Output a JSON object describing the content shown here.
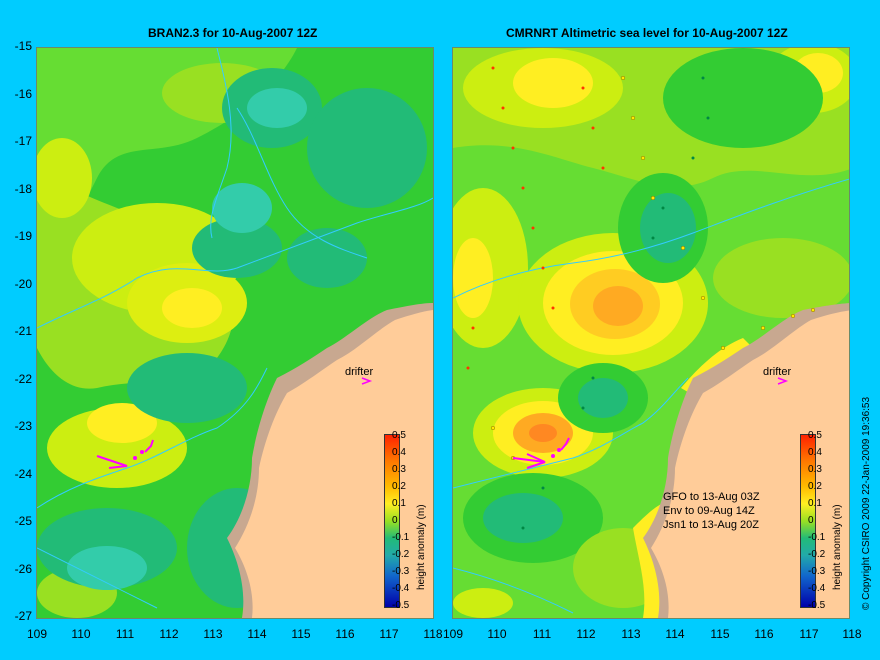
{
  "left_panel": {
    "title": "BRAN2.3 for 10-Aug-2007 12Z",
    "drifter_label": "drifter",
    "colorbar_title": "height anomaly (m)"
  },
  "right_panel": {
    "title": "CMRNRT Altimetric sea level  for 10-Aug-2007 12Z",
    "drifter_label": "drifter",
    "colorbar_title": "height anomaly (m)",
    "legend": [
      "GFO to 13-Aug 03Z",
      "Env to 09-Aug 14Z",
      "Jsn1 to 13-Aug 20Z"
    ]
  },
  "y_ticks": [
    "-15",
    "-16",
    "-17",
    "-18",
    "-19",
    "-20",
    "-21",
    "-22",
    "-23",
    "-24",
    "-25",
    "-26",
    "-27"
  ],
  "x_ticks": [
    "109",
    "110",
    "111",
    "112",
    "113",
    "114",
    "115",
    "116",
    "117",
    "118"
  ],
  "colorbar_ticks": [
    "0.5",
    "0.4",
    "0.3",
    "0.2",
    "0.1",
    "0",
    "-0.1",
    "-0.2",
    "-0.3",
    "-0.4",
    "-0.5"
  ],
  "copyright": "© Copyright CSIRO 2009   22-Jan-2009 19:36:53",
  "colors": {
    "background": "#00ccff",
    "land": "#ffcc99",
    "coast_shelf": "#c8a890",
    "green": "#33cc33",
    "light_green": "#66dd33",
    "yellow_green": "#ccee11",
    "yellow": "#ffee22",
    "orange": "#ffaa22",
    "teal": "#22bb77",
    "drifter": "#ff00ff",
    "contour": "#33ccff"
  }
}
